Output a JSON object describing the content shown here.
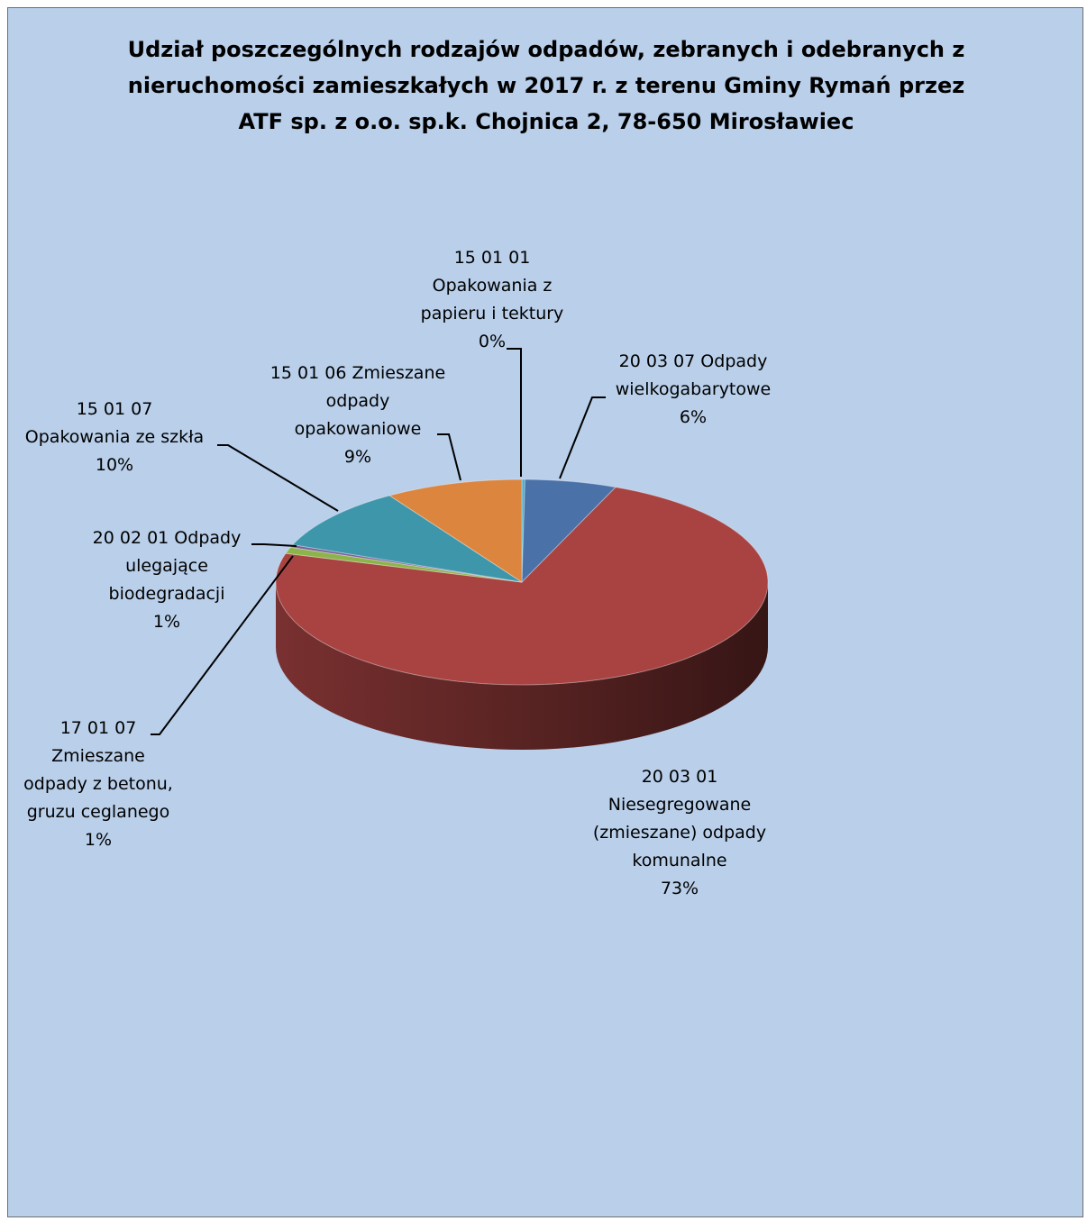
{
  "chart_data": {
    "type": "pie",
    "title_lines": [
      "Udział poszczególnych rodzajów odpadów, zebranych i odebranych z",
      "nieruchomości zamieszkałych w 2017 r. z terenu Gminy Rymań przez",
      "ATF  sp. z o.o. sp.k. Chojnica 2, 78-650 Mirosławiec"
    ],
    "slices": [
      {
        "id": "s-150101",
        "label_lines": [
          "15 01 01",
          "Opakowania  z",
          "papieru i tektury",
          "0%"
        ],
        "value": 0.2,
        "color": "#4bacc6"
      },
      {
        "id": "s-200307",
        "label_lines": [
          "20 03 07 Odpady",
          "wielkogabarytowe",
          "6%"
        ],
        "value": 6,
        "color": "#4a72a8"
      },
      {
        "id": "s-200301",
        "label_lines": [
          "20 03 01",
          "Niesegregowane",
          "(zmieszane) odpady",
          "komunalne",
          "73%"
        ],
        "value": 73,
        "color": "#a84342"
      },
      {
        "id": "s-170107",
        "label_lines": [
          "17 01 07",
          "Zmieszane",
          "odpady z betonu,",
          "gruzu ceglanego",
          "1%"
        ],
        "value": 1,
        "color": "#8db44a"
      },
      {
        "id": "s-200201",
        "label_lines": [
          "20 02 01 Odpady",
          "ulegające",
          "biodegradacji",
          "1%"
        ],
        "value": 0.4,
        "color": "#7a5c9c"
      },
      {
        "id": "s-150107",
        "label_lines": [
          "15 01 07",
          "Opakowania ze szkła",
          "10%"
        ],
        "value": 10,
        "color": "#3e96aa"
      },
      {
        "id": "s-150106",
        "label_lines": [
          "15 01 06 Zmieszane",
          "odpady",
          "opakowaniowe",
          "9%"
        ],
        "value": 9,
        "color": "#dc853e"
      }
    ]
  }
}
